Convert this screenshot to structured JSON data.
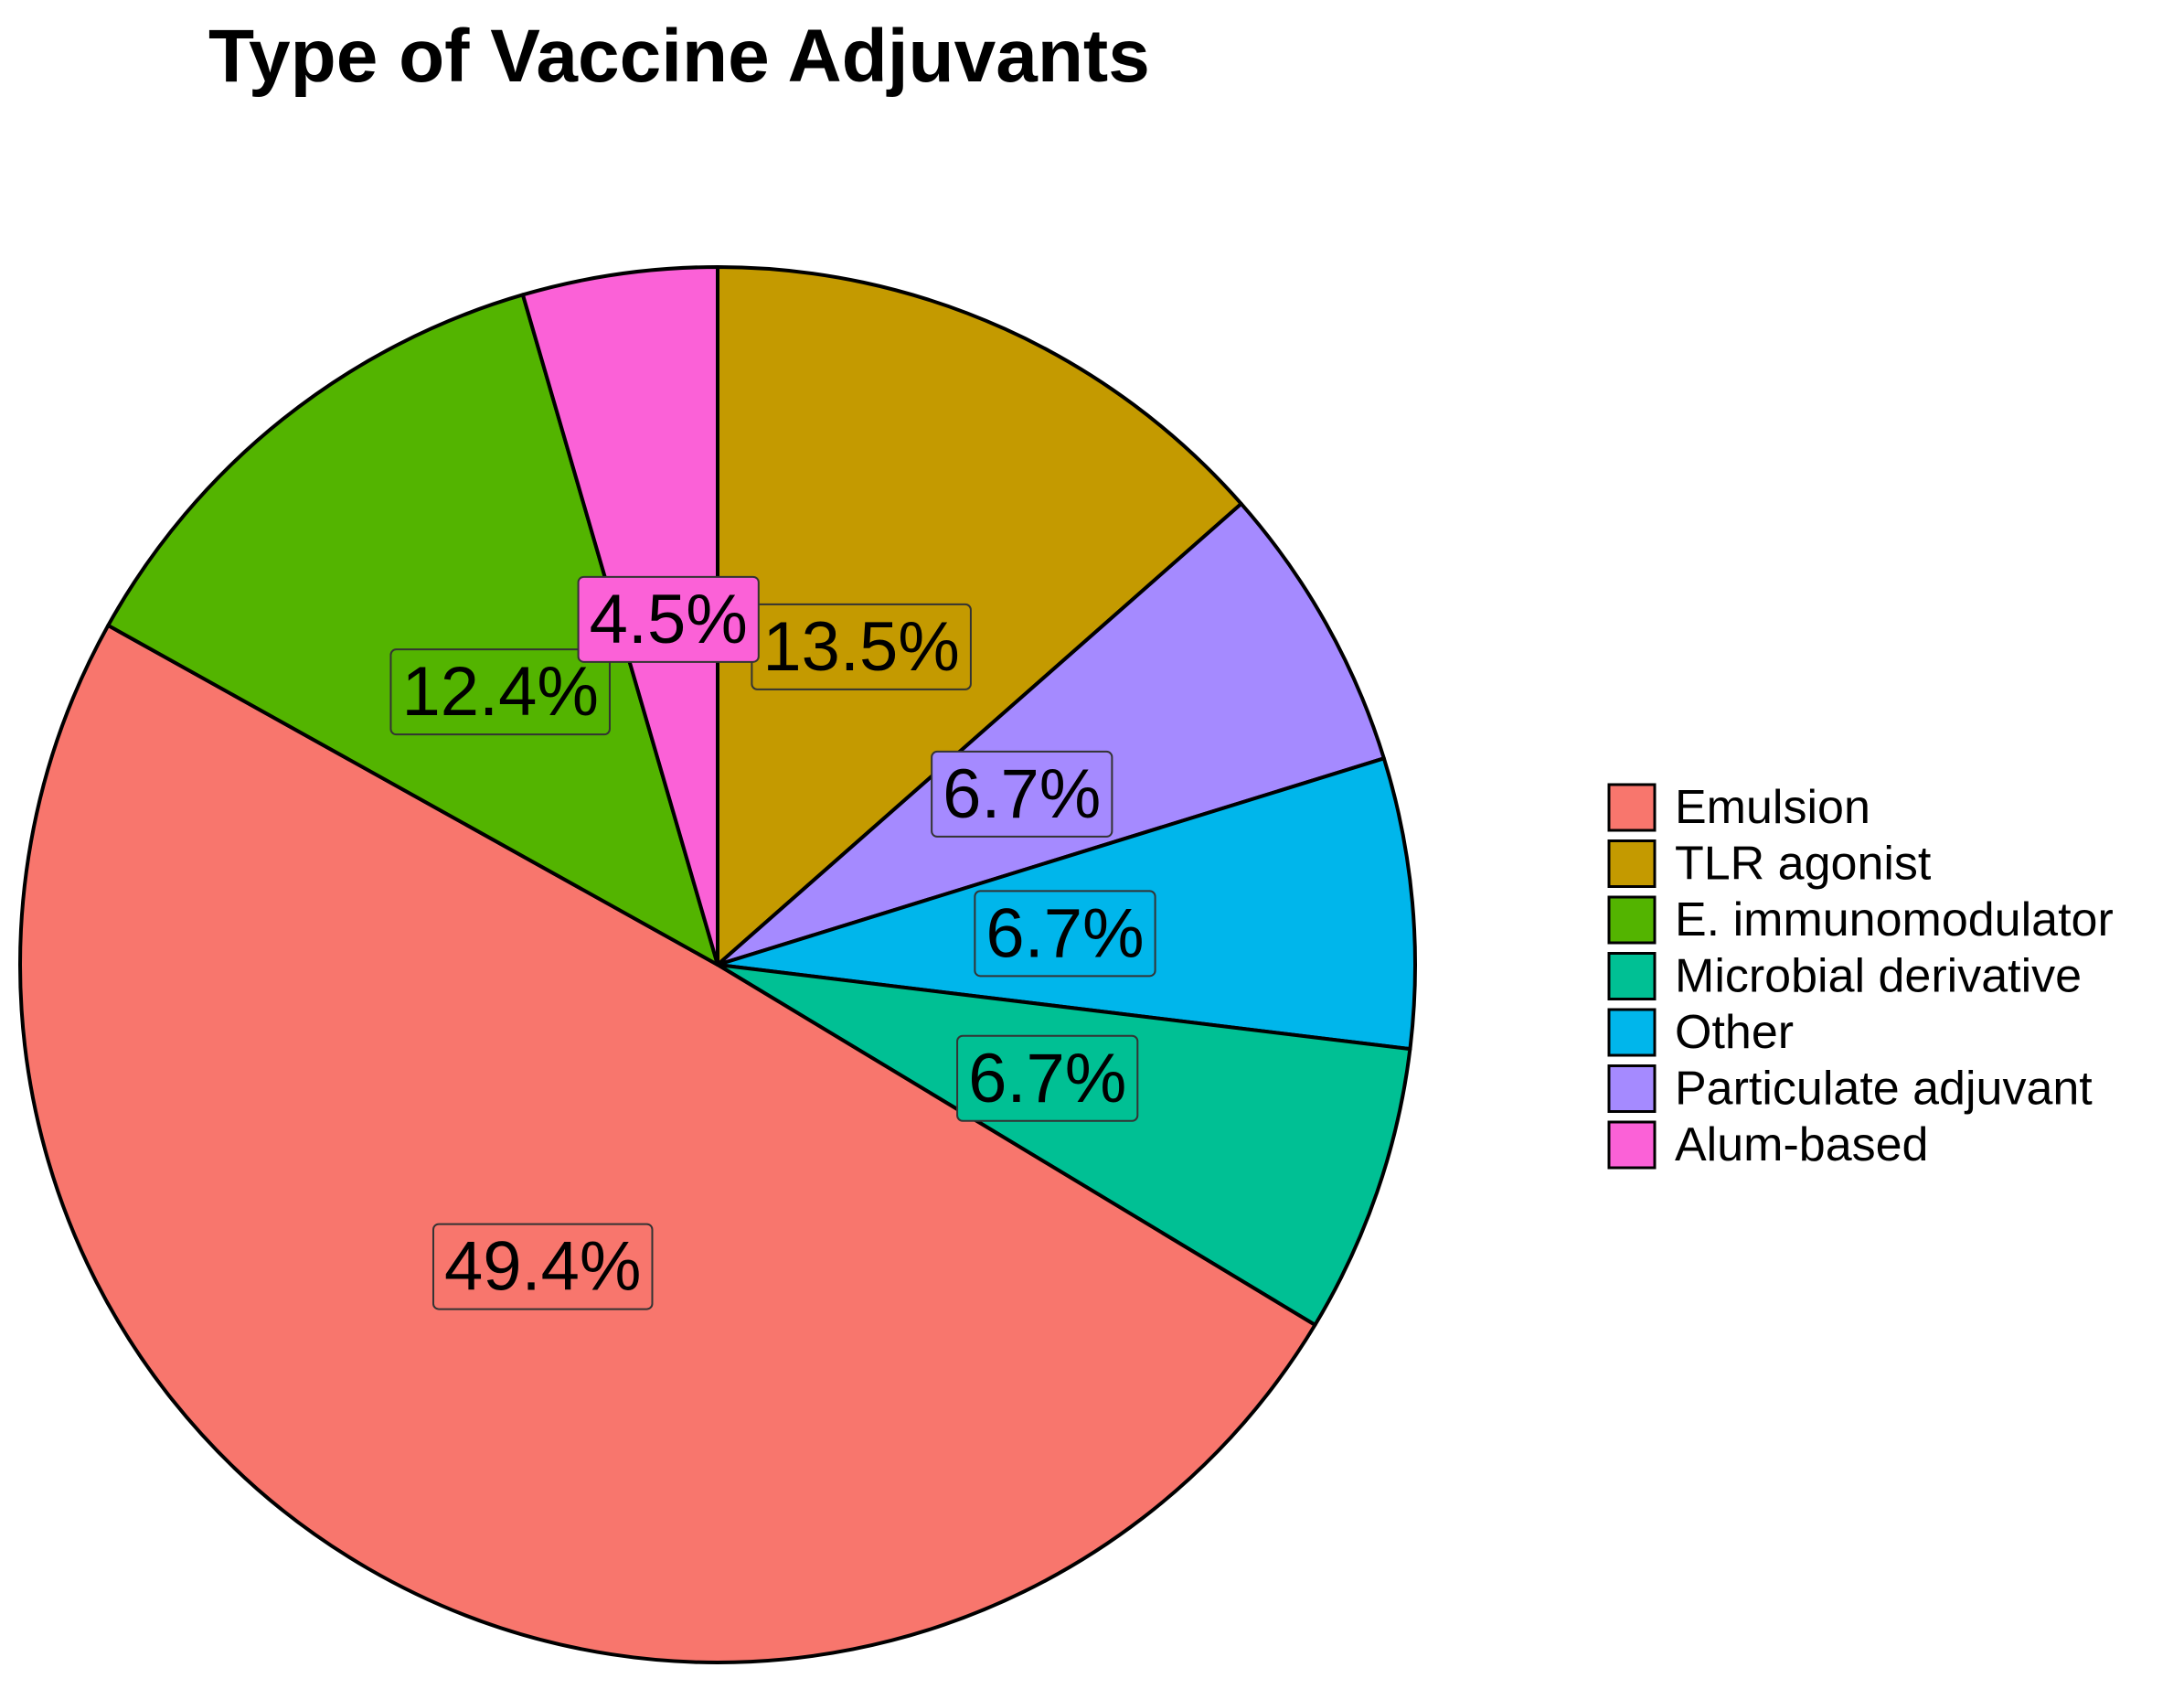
{
  "chart_data": {
    "type": "pie",
    "title": "Type of Vaccine Adjuvants",
    "slices": [
      {
        "name": "TLR agonist",
        "value": 13.5,
        "label": "13.5%",
        "color": "#C49A00"
      },
      {
        "name": "Particulate adjuvant",
        "value": 6.7,
        "label": "6.7%",
        "color": "#A58AFF"
      },
      {
        "name": "Other",
        "value": 6.7,
        "label": "6.7%",
        "color": "#00B6EB"
      },
      {
        "name": "Microbial derivative",
        "value": 6.7,
        "label": "6.7%",
        "color": "#00C094"
      },
      {
        "name": "Emulsion",
        "value": 49.4,
        "label": "49.4%",
        "color": "#F8766D"
      },
      {
        "name": "E. immunomodulator",
        "value": 12.4,
        "label": "12.4%",
        "color": "#53B400"
      },
      {
        "name": "Alum-based",
        "value": 4.5,
        "label": "4.5%",
        "color": "#FB61D7"
      }
    ],
    "legend": {
      "position": "right",
      "entries": [
        {
          "name": "Emulsion",
          "color": "#F8766D"
        },
        {
          "name": "TLR agonist",
          "color": "#C49A00"
        },
        {
          "name": "E. immunomodulator",
          "color": "#53B400"
        },
        {
          "name": "Microbial derivative",
          "color": "#00C094"
        },
        {
          "name": "Other",
          "color": "#00B6EB"
        },
        {
          "name": "Particulate adjuvant",
          "color": "#A58AFF"
        },
        {
          "name": "Alum-based",
          "color": "#FB61D7"
        }
      ]
    }
  }
}
